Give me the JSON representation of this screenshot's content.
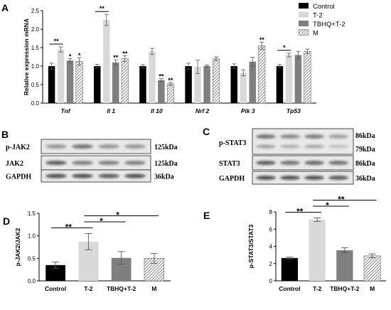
{
  "panel_labels": {
    "a": "A",
    "b": "B",
    "c": "C",
    "d": "D",
    "e": "E"
  },
  "colors": {
    "control": "#000000",
    "t2": "#d9d9d9",
    "tbhq": "#7f7f7f",
    "m_hatch": "#555555"
  },
  "chart_data": [
    {
      "type": "bar",
      "panel": "A",
      "categories": [
        "Tnf",
        "Il 1",
        "Il 10",
        "Nrf 2",
        "Pik 3",
        "Tp53"
      ],
      "ylabel": "Relative expression mRNA",
      "xlabel": "",
      "ylim": [
        0,
        2.5
      ],
      "yticks": [
        "0.0",
        "0.5",
        "1.0",
        "1.5",
        "2.0",
        "2.5"
      ],
      "legend": [
        "Control",
        "T-2",
        "TBHQ+T-2",
        "M"
      ],
      "legend_position": "top-right",
      "series": [
        {
          "name": "Control",
          "values": [
            1.0,
            1.0,
            1.0,
            1.0,
            1.0,
            1.0
          ],
          "errors": [
            0.08,
            0.05,
            0.04,
            0.08,
            0.06,
            0.04
          ]
        },
        {
          "name": "T-2",
          "values": [
            1.45,
            2.25,
            1.4,
            0.98,
            0.82,
            1.3
          ],
          "errors": [
            0.07,
            0.15,
            0.08,
            0.18,
            0.08,
            0.05
          ]
        },
        {
          "name": "TBHQ+T-2",
          "values": [
            1.15,
            1.1,
            0.62,
            1.0,
            1.12,
            1.3
          ],
          "errors": [
            0.05,
            0.07,
            0.04,
            0.03,
            0.12,
            0.1
          ]
        },
        {
          "name": "M",
          "values": [
            1.13,
            1.2,
            0.52,
            1.2,
            1.55,
            1.4
          ],
          "errors": [
            0.1,
            0.08,
            0.04,
            0.05,
            0.1,
            0.06
          ]
        }
      ],
      "significance": [
        {
          "category": 0,
          "bracket": [
            0,
            1
          ],
          "text": "**"
        },
        {
          "category": 0,
          "series": 2,
          "text": "*"
        },
        {
          "category": 0,
          "series": 3,
          "text": "*"
        },
        {
          "category": 1,
          "bracket": [
            0,
            1
          ],
          "text": "**"
        },
        {
          "category": 1,
          "series": 2,
          "text": "**"
        },
        {
          "category": 1,
          "series": 3,
          "text": "**"
        },
        {
          "category": 2,
          "series": 2,
          "text": "**"
        },
        {
          "category": 2,
          "series": 3,
          "text": "**"
        },
        {
          "category": 4,
          "series": 3,
          "text": "**"
        },
        {
          "category": 5,
          "bracket": [
            0,
            1
          ],
          "text": "*"
        }
      ]
    },
    {
      "type": "bar",
      "panel": "D",
      "categories": [
        "Control",
        "T-2",
        "TBHQ+T-2",
        "M"
      ],
      "ylabel": "p-JAK2/JAK2",
      "xlabel": "",
      "ylim": [
        0,
        1.5
      ],
      "yticks": [
        "0.0",
        "0.5",
        "1.0",
        "1.5"
      ],
      "values": [
        0.35,
        0.87,
        0.51,
        0.5
      ],
      "errors": [
        0.07,
        0.18,
        0.14,
        0.11
      ],
      "significance": [
        {
          "bracket": [
            0,
            1
          ],
          "text": "**"
        },
        {
          "bracket": [
            1,
            2
          ],
          "text": "*"
        },
        {
          "bracket": [
            1,
            3
          ],
          "text": "*"
        }
      ]
    },
    {
      "type": "bar",
      "panel": "E",
      "categories": [
        "Control",
        "T-2",
        "TBHQ+T-2",
        "M"
      ],
      "ylabel": "p-STAT3/STAT3",
      "xlabel": "",
      "ylim": [
        0,
        8
      ],
      "yticks": [
        "0",
        "2",
        "4",
        "6",
        "8"
      ],
      "values": [
        2.65,
        7.1,
        3.55,
        2.9
      ],
      "errors": [
        0.1,
        0.2,
        0.28,
        0.22
      ],
      "significance": [
        {
          "bracket": [
            0,
            1
          ],
          "text": "**"
        },
        {
          "bracket": [
            1,
            2
          ],
          "text": "*"
        },
        {
          "bracket": [
            1,
            3
          ],
          "text": "**"
        }
      ]
    }
  ],
  "blot_b": {
    "rows": [
      {
        "label": "p-JAK2",
        "kda": "125kDa"
      },
      {
        "label": "JAK2",
        "kda": "125kDa"
      },
      {
        "label": "GAPDH",
        "kda": "36kDa"
      }
    ]
  },
  "blot_c": {
    "rows": [
      {
        "label": "p-STAT3",
        "kda": "86kDa",
        "kda2": "79kDa"
      },
      {
        "label": "STAT3",
        "kda": "86kDa"
      },
      {
        "label": "GAPDH",
        "kda": "36kDa"
      }
    ]
  }
}
